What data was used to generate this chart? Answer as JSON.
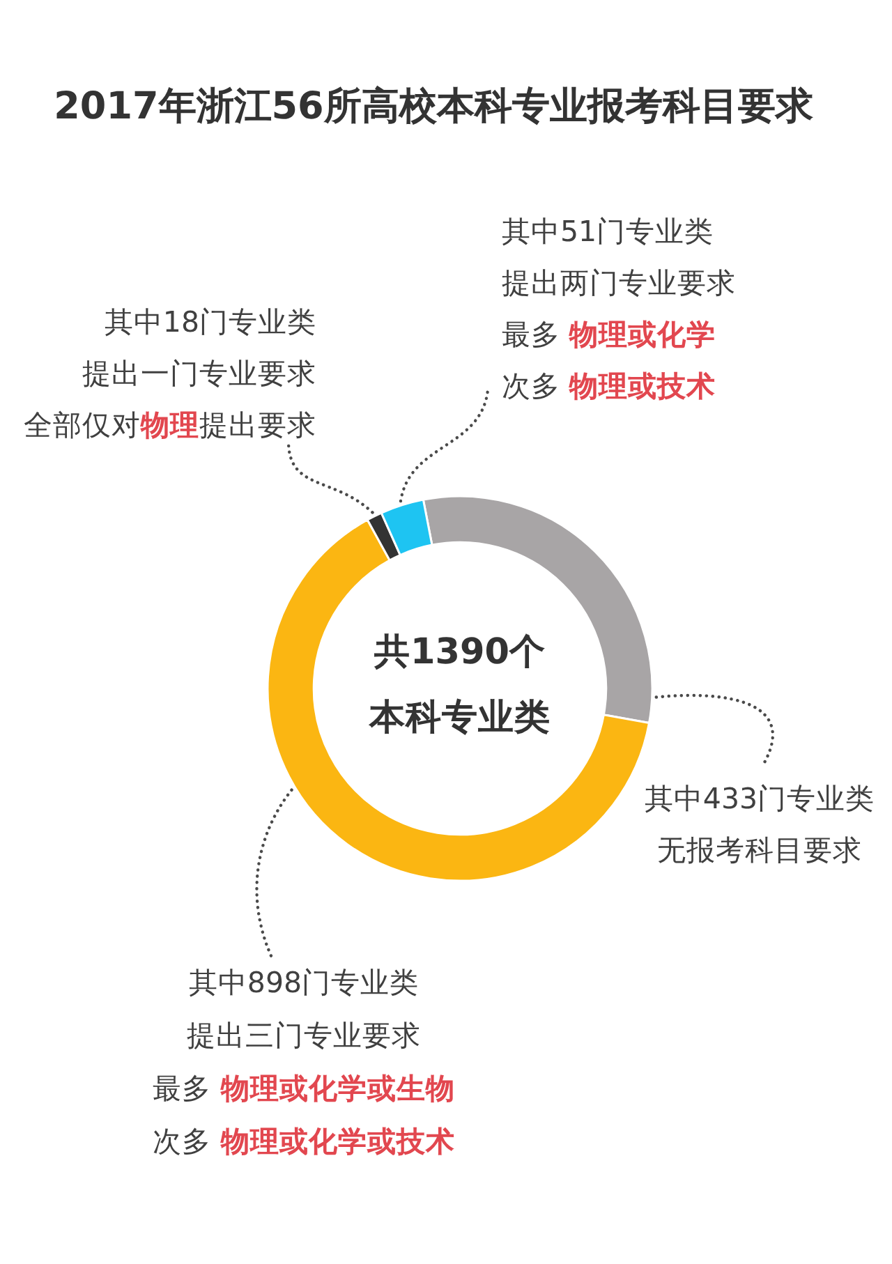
{
  "chart_data": {
    "type": "donut",
    "title": "2017年浙江56所高校本科专业报考科目要求",
    "categories": [
      "其中433门专业类无报考科目要求",
      "其中898门专业类提出三门专业要求最多 **物理或化学或生物**次多 **物理或化学或技术**",
      "其中18门专业类提出一门专业要求全部仅对**物理**提出要求",
      "其中51门专业类提出两门专业要求最多 **物理或化学**次多 **物理或技术**"
    ],
    "values": [
      433,
      898,
      18,
      51
    ],
    "colors": [
      "#a8a5a6",
      "#fbb612",
      "#333333",
      "#1ec4f2"
    ],
    "annotations": [
      "共1390个本科专业类"
    ]
  }
}
